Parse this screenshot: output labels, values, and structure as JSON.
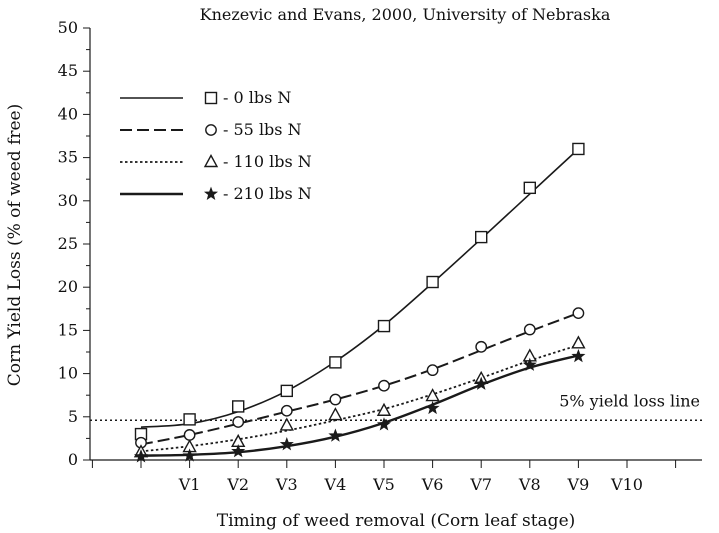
{
  "chart_data": {
    "type": "line",
    "title": "Knezevic and Evans, 2000, University of Nebraska",
    "xlabel": "Timing of weed removal (Corn leaf stage)",
    "ylabel": "Corn Yield Loss (% of weed free)",
    "categories": [
      "V1",
      "V2",
      "V3",
      "V4",
      "V5",
      "V6",
      "V7",
      "V8",
      "V9",
      "V10"
    ],
    "ylim": [
      0,
      50
    ],
    "yticks": [
      0,
      5,
      10,
      15,
      20,
      25,
      30,
      35,
      40,
      45,
      50
    ],
    "grid": false,
    "legend_position": "top-left",
    "reference_line": {
      "y": 4.6,
      "label": "5% yield loss line"
    },
    "series": [
      {
        "name": "- 0 lbs N",
        "marker": "square",
        "line_style": "solid-thin",
        "color": "#1a1a1a",
        "points": [
          {
            "x": 0,
            "y": 3.0
          },
          {
            "x": 1,
            "y": 4.7
          },
          {
            "x": 2,
            "y": 6.2
          },
          {
            "x": 3,
            "y": 8.0
          },
          {
            "x": 4,
            "y": 11.3
          },
          {
            "x": 5,
            "y": 15.5
          },
          {
            "x": 6,
            "y": 20.6
          },
          {
            "x": 7,
            "y": 25.8
          },
          {
            "x": 8,
            "y": 31.5
          },
          {
            "x": 9,
            "y": 36.0
          }
        ],
        "curve": [
          {
            "x": 0,
            "y": 3.8
          },
          {
            "x": 1,
            "y": 4.2
          },
          {
            "x": 2,
            "y": 5.6
          },
          {
            "x": 3,
            "y": 8.0
          },
          {
            "x": 4,
            "y": 11.4
          },
          {
            "x": 5,
            "y": 15.6
          },
          {
            "x": 6,
            "y": 20.5
          },
          {
            "x": 7,
            "y": 25.6
          },
          {
            "x": 8,
            "y": 30.8
          },
          {
            "x": 9,
            "y": 36.0
          }
        ]
      },
      {
        "name": "- 55 lbs N",
        "marker": "circle",
        "line_style": "dashed",
        "color": "#1a1a1a",
        "points": [
          {
            "x": 0,
            "y": 2.0
          },
          {
            "x": 1,
            "y": 2.9
          },
          {
            "x": 2,
            "y": 4.4
          },
          {
            "x": 3,
            "y": 5.7
          },
          {
            "x": 4,
            "y": 7.0
          },
          {
            "x": 5,
            "y": 8.6
          },
          {
            "x": 6,
            "y": 10.4
          },
          {
            "x": 7,
            "y": 13.1
          },
          {
            "x": 8,
            "y": 15.1
          },
          {
            "x": 9,
            "y": 17.0
          }
        ],
        "curve": [
          {
            "x": 0,
            "y": 1.8
          },
          {
            "x": 1,
            "y": 2.9
          },
          {
            "x": 2,
            "y": 4.2
          },
          {
            "x": 3,
            "y": 5.6
          },
          {
            "x": 4,
            "y": 7.0
          },
          {
            "x": 5,
            "y": 8.6
          },
          {
            "x": 6,
            "y": 10.5
          },
          {
            "x": 7,
            "y": 12.7
          },
          {
            "x": 8,
            "y": 14.9
          },
          {
            "x": 9,
            "y": 17.0
          }
        ]
      },
      {
        "name": "- 110 lbs N",
        "marker": "triangle",
        "line_style": "dotted",
        "color": "#1a1a1a",
        "points": [
          {
            "x": 0,
            "y": 0.9
          },
          {
            "x": 1,
            "y": 1.5
          },
          {
            "x": 2,
            "y": 2.1
          },
          {
            "x": 3,
            "y": 4.0
          },
          {
            "x": 4,
            "y": 5.2
          },
          {
            "x": 5,
            "y": 5.7
          },
          {
            "x": 6,
            "y": 7.4
          },
          {
            "x": 7,
            "y": 9.4
          },
          {
            "x": 8,
            "y": 12.0
          },
          {
            "x": 9,
            "y": 13.5
          }
        ],
        "curve": [
          {
            "x": 0,
            "y": 1.0
          },
          {
            "x": 1,
            "y": 1.6
          },
          {
            "x": 2,
            "y": 2.4
          },
          {
            "x": 3,
            "y": 3.4
          },
          {
            "x": 4,
            "y": 4.6
          },
          {
            "x": 5,
            "y": 5.9
          },
          {
            "x": 6,
            "y": 7.6
          },
          {
            "x": 7,
            "y": 9.5
          },
          {
            "x": 8,
            "y": 11.5
          },
          {
            "x": 9,
            "y": 13.3
          }
        ]
      },
      {
        "name": "- 210 lbs N",
        "marker": "star",
        "line_style": "solid-thick",
        "color": "#1a1a1a",
        "points": [
          {
            "x": 0,
            "y": 0.4
          },
          {
            "x": 1,
            "y": 0.5
          },
          {
            "x": 2,
            "y": 1.0
          },
          {
            "x": 3,
            "y": 1.8
          },
          {
            "x": 4,
            "y": 2.8
          },
          {
            "x": 5,
            "y": 4.1
          },
          {
            "x": 6,
            "y": 6.0
          },
          {
            "x": 7,
            "y": 8.8
          },
          {
            "x": 8,
            "y": 11.0
          },
          {
            "x": 9,
            "y": 12.0
          }
        ],
        "curve": [
          {
            "x": 0,
            "y": 0.5
          },
          {
            "x": 1,
            "y": 0.6
          },
          {
            "x": 2,
            "y": 0.9
          },
          {
            "x": 3,
            "y": 1.6
          },
          {
            "x": 4,
            "y": 2.7
          },
          {
            "x": 5,
            "y": 4.3
          },
          {
            "x": 6,
            "y": 6.4
          },
          {
            "x": 7,
            "y": 8.7
          },
          {
            "x": 8,
            "y": 10.7
          },
          {
            "x": 9,
            "y": 12.1
          }
        ]
      }
    ]
  }
}
